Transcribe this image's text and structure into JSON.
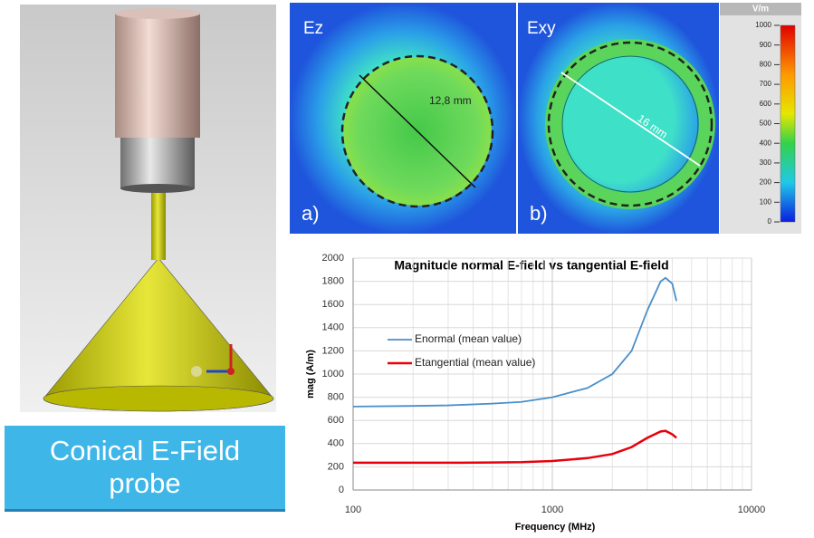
{
  "probe_label": "Conical E-Field probe",
  "field_maps": [
    {
      "field": "Ez",
      "panel": "a)",
      "dimension": "12,8 mm"
    },
    {
      "field": "Exy",
      "panel": "b)",
      "dimension": "16 mm"
    }
  ],
  "colorbar": {
    "unit": "V/m",
    "lim": [
      0,
      1000
    ],
    "ticks": [
      0,
      100,
      200,
      300,
      400,
      500,
      600,
      700,
      800,
      900,
      1000
    ]
  },
  "chart_data": {
    "type": "line",
    "title": "Magnitude normal E-field vs tangential E-field",
    "x_label": "Frequency (MHz)",
    "y_label": "mag (A/m)",
    "x_scale": "log",
    "x": [
      100,
      200,
      300,
      500,
      700,
      1000,
      1500,
      2000,
      2500,
      3000,
      3500,
      3700,
      4000,
      4200
    ],
    "xlim": [
      100,
      10000
    ],
    "xticks": [
      100,
      1000,
      10000
    ],
    "ylim": [
      0,
      2000
    ],
    "yticks": [
      0,
      200,
      400,
      600,
      800,
      1000,
      1200,
      1400,
      1600,
      1800,
      2000
    ],
    "grid": true,
    "series": [
      {
        "name": "Enormal (mean value)",
        "color": "#4a8fc9",
        "values": [
          720,
          725,
          730,
          745,
          760,
          800,
          880,
          1000,
          1200,
          1550,
          1800,
          1830,
          1780,
          1630
        ]
      },
      {
        "name": "Etangential (mean value)",
        "color": "#e8000b",
        "values": [
          235,
          235,
          235,
          237,
          240,
          250,
          275,
          310,
          370,
          450,
          505,
          510,
          480,
          450
        ]
      }
    ]
  }
}
